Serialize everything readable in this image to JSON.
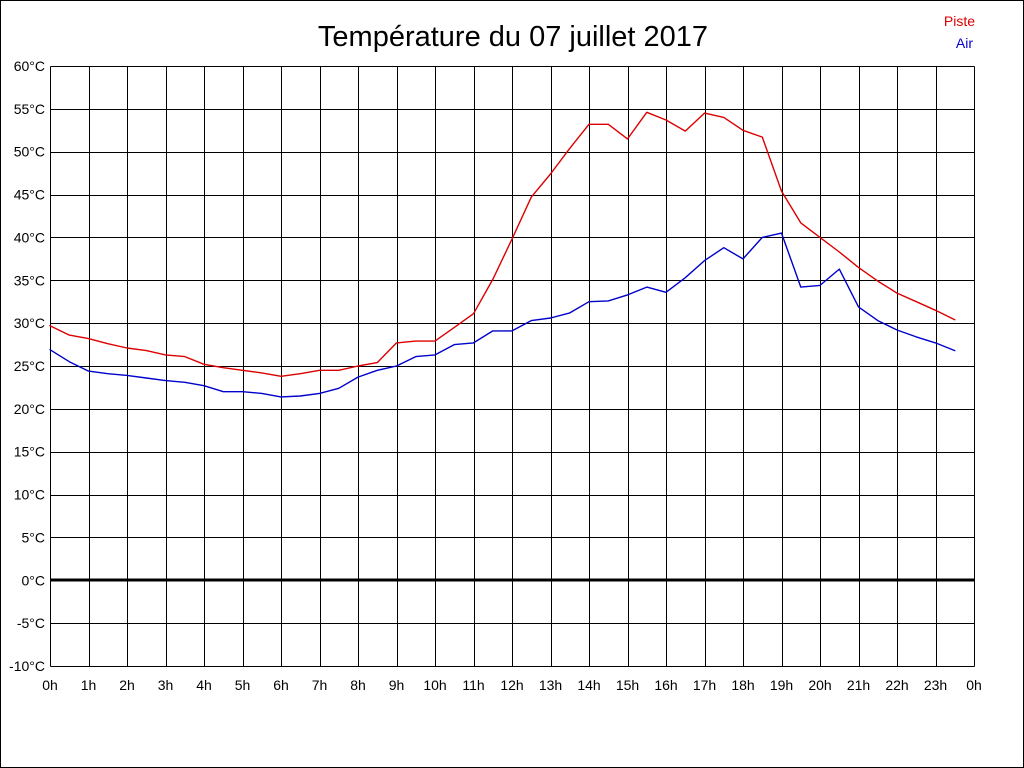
{
  "chart_data": {
    "type": "line",
    "title": "Température du 07 juillet 2017",
    "xlim": [
      0,
      24
    ],
    "ylim": [
      -10,
      60
    ],
    "x_ticks": [
      0,
      1,
      2,
      3,
      4,
      5,
      6,
      7,
      8,
      9,
      10,
      11,
      12,
      13,
      14,
      15,
      16,
      17,
      18,
      19,
      20,
      21,
      22,
      23,
      24
    ],
    "x_tick_labels": [
      "0h",
      "1h",
      "2h",
      "3h",
      "4h",
      "5h",
      "6h",
      "7h",
      "8h",
      "9h",
      "10h",
      "11h",
      "12h",
      "13h",
      "14h",
      "15h",
      "16h",
      "17h",
      "18h",
      "19h",
      "20h",
      "21h",
      "22h",
      "23h",
      "0h"
    ],
    "y_ticks": [
      60,
      55,
      50,
      45,
      40,
      35,
      30,
      25,
      20,
      15,
      10,
      5,
      0,
      -5,
      -10
    ],
    "y_tick_labels": [
      "60°C",
      "55°C",
      "50°C",
      "45°C",
      "40°C",
      "35°C",
      "30°C",
      "25°C",
      "20°C",
      "15°C",
      "10°C",
      "5°C",
      "0°C",
      "-5°C",
      "-10°C"
    ],
    "grid": true,
    "zero_line": true,
    "legend": "top-right",
    "x": [
      0,
      0.5,
      1,
      1.5,
      2,
      2.5,
      3,
      3.5,
      4,
      4.5,
      5,
      5.5,
      6,
      6.5,
      7,
      7.5,
      8,
      8.5,
      9,
      9.5,
      10,
      10.5,
      11,
      11.5,
      12,
      12.5,
      13,
      13.5,
      14,
      14.5,
      15,
      15.5,
      16,
      16.5,
      17,
      17.5,
      18,
      18.5,
      19,
      19.5,
      20,
      20.5,
      21,
      21.5,
      22,
      22.5,
      23,
      23.5
    ],
    "series": [
      {
        "name": "Piste",
        "color": "#dd0000",
        "values": [
          29.7,
          28.6,
          28.2,
          27.6,
          27.1,
          26.8,
          26.3,
          26.1,
          25.2,
          24.8,
          24.5,
          24.2,
          23.8,
          24.1,
          24.5,
          24.5,
          25.0,
          25.4,
          27.7,
          27.9,
          27.9,
          29.5,
          31.1,
          35.1,
          39.8,
          44.7,
          47.4,
          50.4,
          53.2,
          53.2,
          51.5,
          54.6,
          53.7,
          52.4,
          54.5,
          54.0,
          52.5,
          51.7,
          45.4,
          41.7,
          40.0,
          38.3,
          36.5,
          34.9,
          33.5,
          32.5,
          31.5,
          30.4
        ]
      },
      {
        "name": "Air",
        "color": "#0000cc",
        "values": [
          26.9,
          25.5,
          24.4,
          24.1,
          23.9,
          23.6,
          23.3,
          23.1,
          22.7,
          22.0,
          22.0,
          21.8,
          21.4,
          21.5,
          21.8,
          22.4,
          23.7,
          24.5,
          25.0,
          26.1,
          26.3,
          27.5,
          27.7,
          29.1,
          29.1,
          30.3,
          30.6,
          31.2,
          32.5,
          32.6,
          33.3,
          34.2,
          33.6,
          35.3,
          37.3,
          38.8,
          37.5,
          40.0,
          40.5,
          34.2,
          34.4,
          36.3,
          31.9,
          30.3,
          29.2,
          28.4,
          27.7,
          26.8
        ]
      }
    ]
  }
}
